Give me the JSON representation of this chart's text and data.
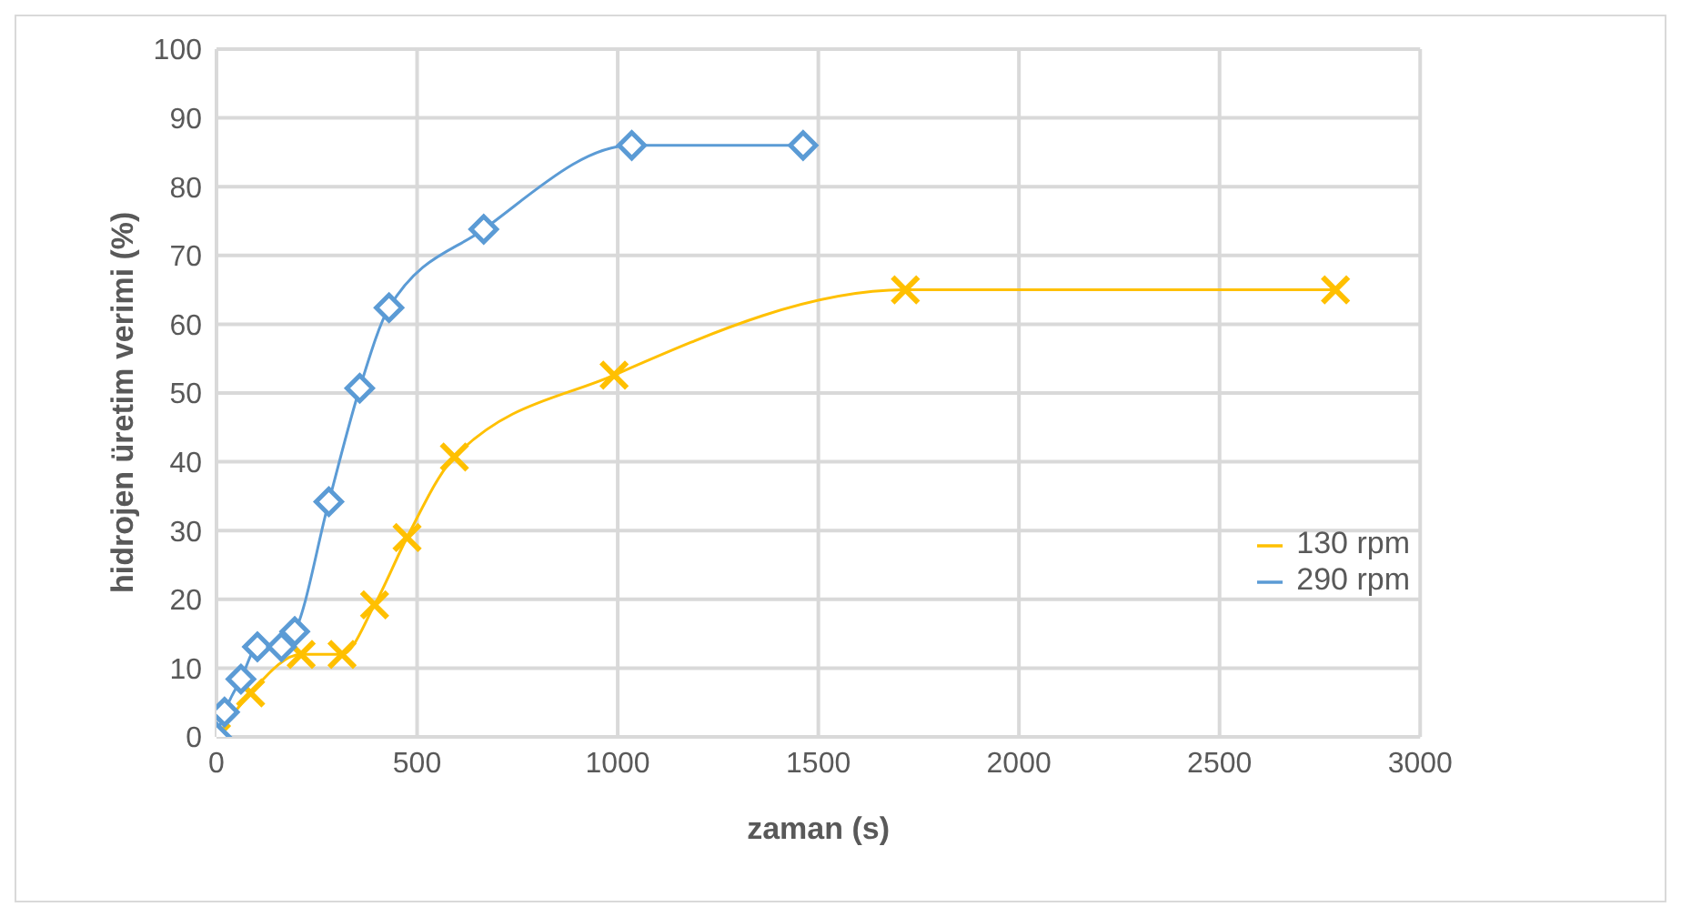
{
  "chart_data": {
    "type": "line",
    "xlabel": "zaman (s)",
    "ylabel": "hidrojen üretim verimi (%)",
    "xlim": [
      0,
      3000
    ],
    "xticks": [
      0,
      500,
      1000,
      1500,
      2000,
      2500,
      3000
    ],
    "ylim": [
      0,
      100
    ],
    "yticks": [
      0,
      10,
      20,
      30,
      40,
      50,
      60,
      70,
      80,
      90,
      100
    ],
    "grid": true,
    "legend": "right",
    "series": [
      {
        "name": "130 rpm",
        "color": "#ffc000",
        "marker": "cross",
        "x": [
          0,
          85,
          211,
          313,
          394,
          475,
          593,
          991,
          1717,
          2789
        ],
        "values": [
          0,
          6.4,
          12,
          12,
          19.2,
          29,
          40.7,
          52.6,
          65,
          65
        ]
      },
      {
        "name": "290 rpm",
        "color": "#5b9bd5",
        "marker": "diamond",
        "x": [
          0,
          20,
          61,
          102,
          162,
          195,
          280,
          357,
          430,
          666,
          1035,
          1462
        ],
        "values": [
          0,
          3.6,
          8.4,
          13.1,
          13.1,
          15.3,
          34.2,
          50.7,
          62.4,
          73.8,
          86,
          86
        ]
      }
    ]
  }
}
